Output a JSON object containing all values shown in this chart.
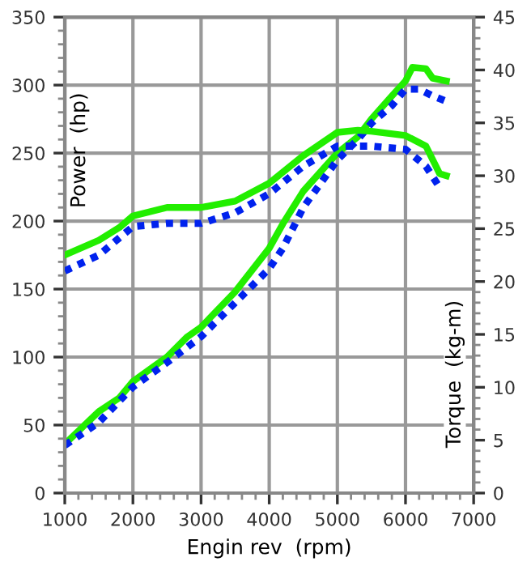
{
  "chart_data": {
    "type": "line",
    "xlabel": "Engin rev  (rpm)",
    "ylabel": "Power  (hp)",
    "y2label": "Torque  (kg-m)",
    "xlim": [
      1000,
      7000
    ],
    "xticks": [
      1000,
      2000,
      3000,
      4000,
      5000,
      6000,
      7000
    ],
    "ylim": [
      0,
      350
    ],
    "yticks": [
      0,
      50,
      100,
      150,
      200,
      250,
      300,
      350
    ],
    "y2lim": [
      0,
      45
    ],
    "y2ticks": [
      0,
      5,
      10,
      15,
      20,
      25,
      30,
      35,
      40,
      45
    ],
    "grid": true,
    "marker": "none",
    "series": [
      {
        "color": "#22ee00",
        "line_style": "solid",
        "x": [
          1000,
          1500,
          1800,
          2000,
          2500,
          2800,
          3000,
          3500,
          4000,
          4200,
          4500,
          5000,
          5300,
          5500,
          5800,
          6000,
          6100,
          6300,
          6400,
          6600
        ],
        "values": [
          36,
          60,
          70,
          82,
          100,
          115,
          122,
          148,
          180,
          198,
          222,
          250,
          262,
          275,
          292,
          303,
          313,
          312,
          305,
          303
        ]
      },
      {
        "color": "#0022ee",
        "line_style": "dotted",
        "x": [
          1000,
          1500,
          2000,
          2500,
          3000,
          3500,
          4000,
          4200,
          4500,
          5000,
          5300,
          5500,
          5800,
          6000,
          6200,
          6400,
          6600
        ],
        "values": [
          35,
          52,
          78,
          96,
          115,
          140,
          165,
          180,
          210,
          245,
          260,
          272,
          285,
          297,
          297,
          292,
          288
        ]
      },
      {
        "color": "#22ee00",
        "line_style": "solid",
        "axis": "y2",
        "x": [
          1000,
          1500,
          1800,
          2000,
          2500,
          3000,
          3500,
          4000,
          4500,
          5000,
          5300,
          5500,
          6000,
          6300,
          6500,
          6600
        ],
        "values": [
          22.5,
          23.9,
          25.1,
          26.2,
          27.0,
          27.0,
          27.6,
          29.3,
          31.9,
          34.1,
          34.3,
          34.2,
          33.8,
          32.8,
          30.2,
          30.0
        ]
      },
      {
        "color": "#0022ee",
        "line_style": "dotted",
        "axis": "y2",
        "x": [
          1000,
          1500,
          2000,
          2500,
          3000,
          3500,
          4000,
          4500,
          5000,
          5500,
          6000,
          6300,
          6500
        ],
        "values": [
          21.0,
          22.5,
          25.2,
          25.5,
          25.5,
          26.5,
          28.3,
          30.9,
          32.8,
          32.8,
          32.5,
          30.9,
          28.9
        ]
      }
    ]
  }
}
